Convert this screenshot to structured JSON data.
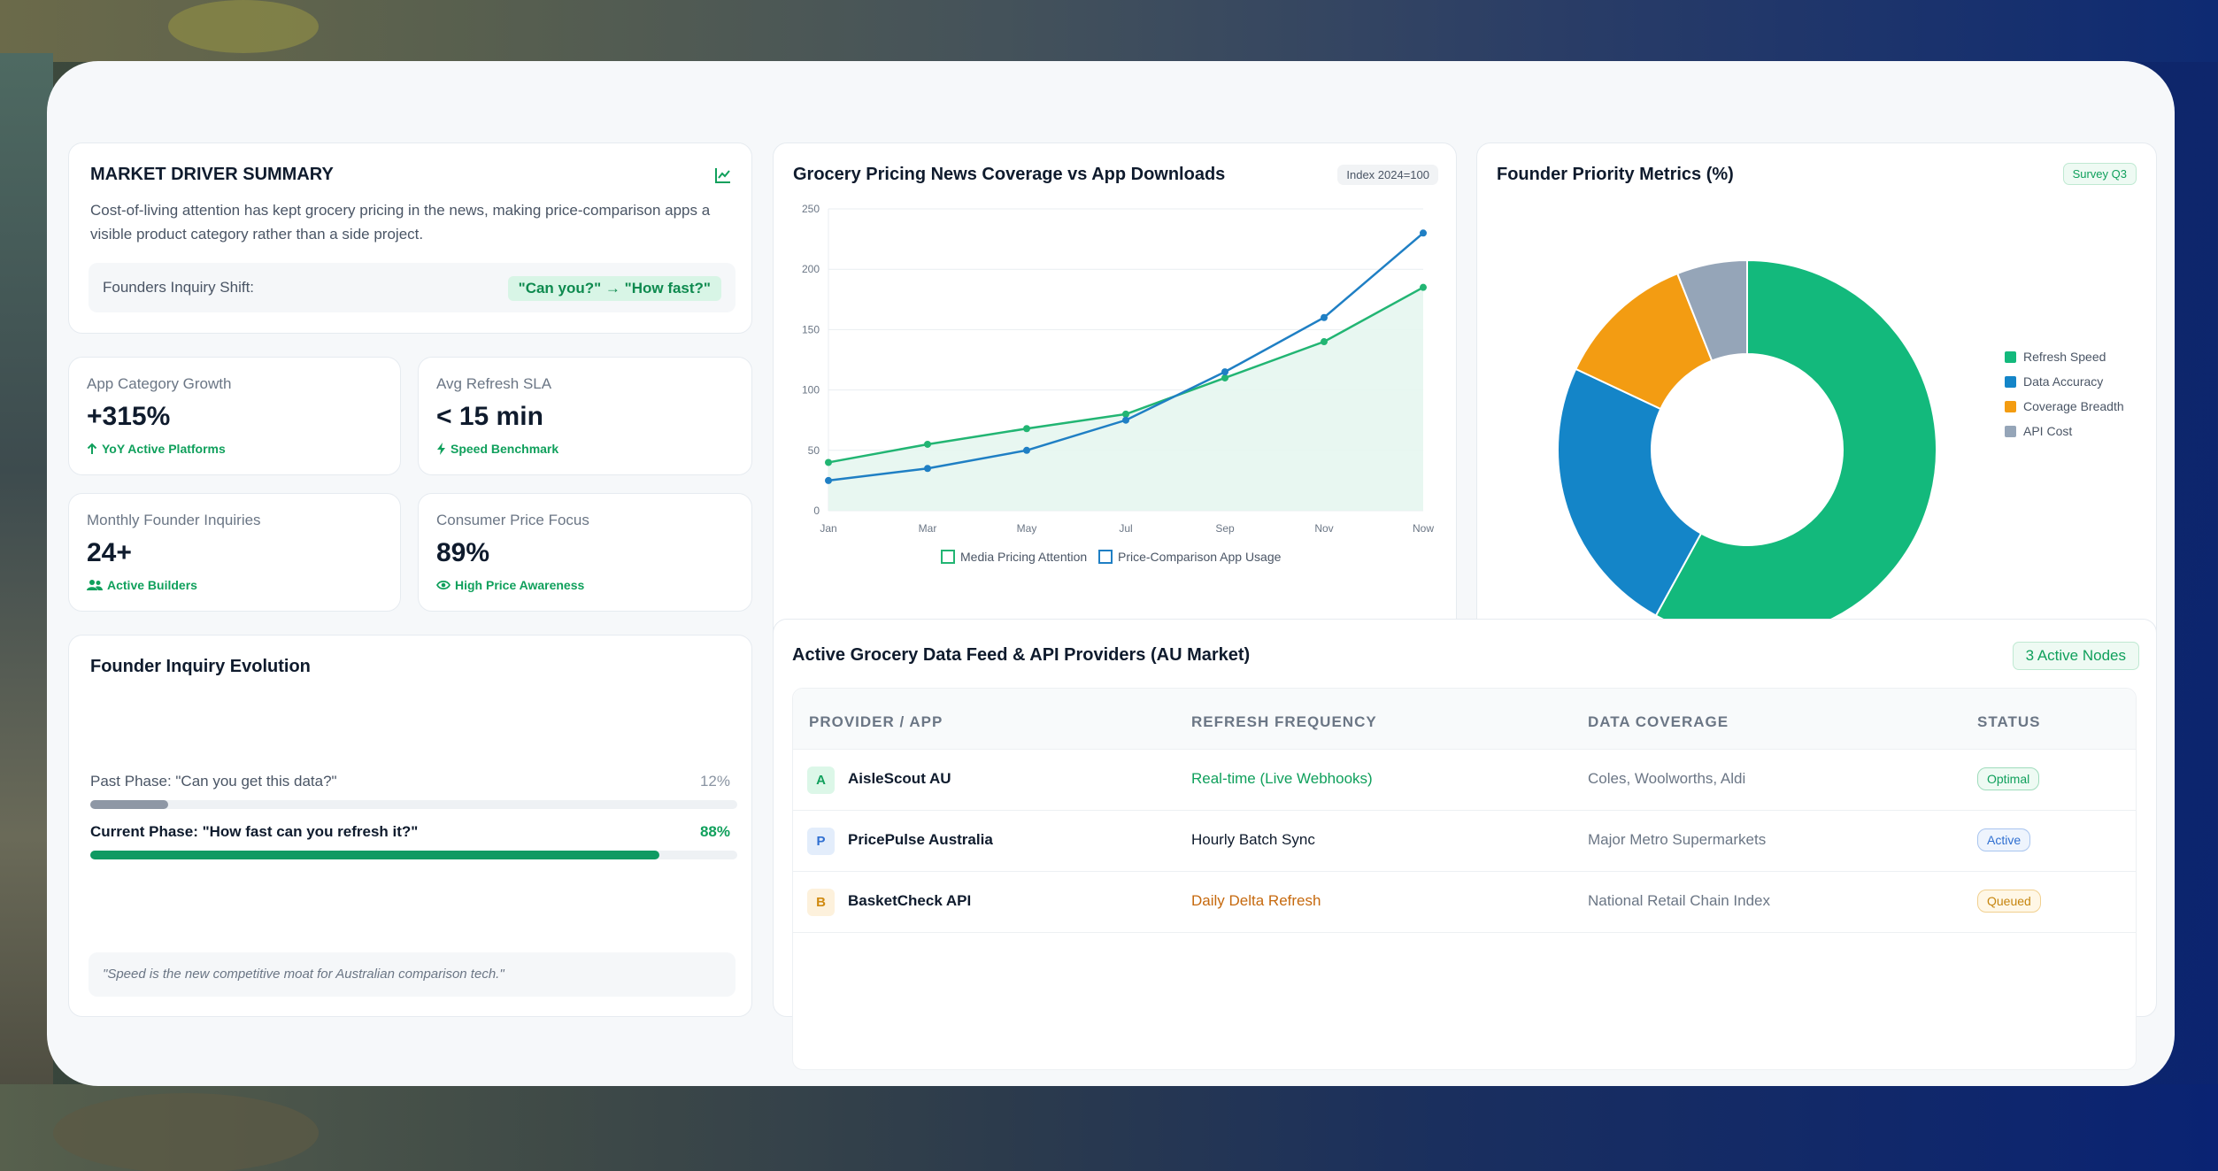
{
  "market_driver": {
    "title": "MARKET DRIVER SUMMARY",
    "description": "Cost-of-living attention has kept grocery pricing in the news, making price-comparison apps a visible product category rather than a side project.",
    "shift_label": "Founders Inquiry Shift:",
    "shift_value": "\"Can you?\" → \"How fast?\"",
    "icon": "chart-line-icon"
  },
  "kpis": [
    {
      "label": "App Category Growth",
      "value": "+315%",
      "sub": "YoY Active Platforms",
      "icon": "arrow-up-icon"
    },
    {
      "label": "Avg Refresh SLA",
      "value": "< 15 min",
      "sub": "Speed Benchmark",
      "icon": "bolt-icon"
    },
    {
      "label": "Monthly Founder Inquiries",
      "value": "24+",
      "sub": "Active Builders",
      "icon": "users-icon"
    },
    {
      "label": "Consumer Price Focus",
      "value": "89%",
      "sub": "High Price Awareness",
      "icon": "eye-icon"
    }
  ],
  "evolution": {
    "title": "Founder Inquiry Evolution",
    "past_label": "Past Phase: \"Can you get this data?\"",
    "past_value": "12%",
    "past_fraction": 0.12,
    "current_label": "Current Phase: \"How fast can you refresh it?\"",
    "current_value": "88%",
    "current_fraction": 0.88,
    "quote": "\"Speed is the new competitive moat for Australian comparison tech.\""
  },
  "line_chart": {
    "title": "Grocery Pricing News Coverage vs App Downloads",
    "badge": "Index 2024=100"
  },
  "donut_chart": {
    "title": "Founder Priority Metrics (%)",
    "badge": "Survey Q3"
  },
  "chart_data": [
    {
      "type": "line",
      "title": "Grocery Pricing News Coverage vs App Downloads",
      "x": [
        "Jan",
        "Mar",
        "May",
        "Jul",
        "Sep",
        "Nov",
        "Now"
      ],
      "ylim": [
        0,
        250
      ],
      "yticks": [
        0,
        50,
        100,
        150,
        200,
        250
      ],
      "grid": true,
      "series": [
        {
          "name": "Media Pricing Attention",
          "color": "#22b573",
          "values": [
            40,
            55,
            68,
            80,
            110,
            140,
            185
          ]
        },
        {
          "name": "Price-Comparison App Usage",
          "color": "#1f7fc4",
          "values": [
            25,
            35,
            50,
            75,
            115,
            160,
            230
          ]
        }
      ],
      "legend": "bottom"
    },
    {
      "type": "pie",
      "title": "Founder Priority Metrics (%)",
      "labels": [
        "Refresh Speed",
        "Data Accuracy",
        "Coverage Breadth",
        "API Cost"
      ],
      "values": [
        58,
        24,
        12,
        6
      ],
      "colors": [
        "#13b97c",
        "#1485c8",
        "#f39c12",
        "#95a5b8"
      ],
      "legend": "right"
    }
  ],
  "providers": {
    "title": "Active Grocery Data Feed & API Providers (AU Market)",
    "badge": "3 Active Nodes",
    "headers": [
      "PROVIDER / APP",
      "REFRESH FREQUENCY",
      "DATA COVERAGE",
      "STATUS"
    ],
    "rows": [
      {
        "initial": "A",
        "name": "AisleScout AU",
        "frequency": "Real-time (Live Webhooks)",
        "coverage": "Coles, Woolworths, Aldi",
        "status": "Optimal"
      },
      {
        "initial": "P",
        "name": "PricePulse Australia",
        "frequency": "Hourly Batch Sync",
        "coverage": "Major Metro Supermarkets",
        "status": "Active"
      },
      {
        "initial": "B",
        "name": "BasketCheck API",
        "frequency": "Daily Delta Refresh",
        "coverage": "National Retail Chain Index",
        "status": "Queued"
      }
    ]
  }
}
